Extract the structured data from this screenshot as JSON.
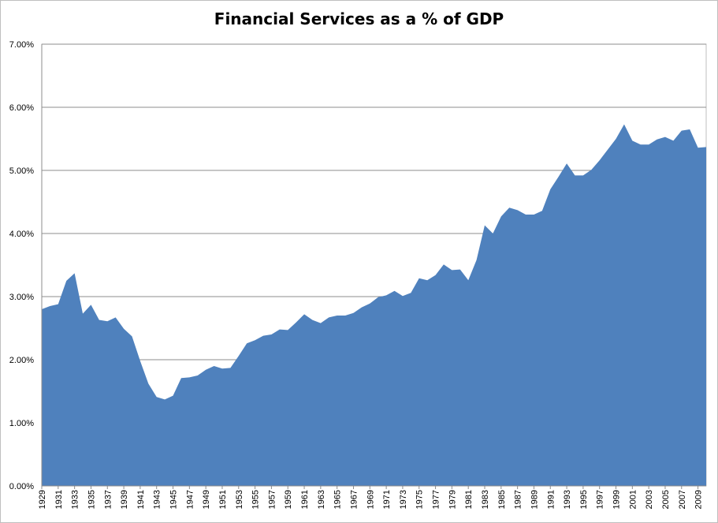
{
  "chart_data": {
    "type": "area",
    "title": "Financial Services as a % of GDP",
    "xlabel": "",
    "ylabel": "",
    "ylim": [
      0,
      7
    ],
    "yticks": [
      0,
      1,
      2,
      3,
      4,
      5,
      6,
      7
    ],
    "ytick_labels": [
      "0.00%",
      "1.00%",
      "2.00%",
      "3.00%",
      "4.00%",
      "5.00%",
      "6.00%",
      "7.00%"
    ],
    "grid": true,
    "x": [
      1929,
      1930,
      1931,
      1932,
      1933,
      1934,
      1935,
      1936,
      1937,
      1938,
      1939,
      1940,
      1941,
      1942,
      1943,
      1944,
      1945,
      1946,
      1947,
      1948,
      1949,
      1950,
      1951,
      1952,
      1953,
      1954,
      1955,
      1956,
      1957,
      1958,
      1959,
      1960,
      1961,
      1962,
      1963,
      1964,
      1965,
      1966,
      1967,
      1968,
      1969,
      1970,
      1971,
      1972,
      1973,
      1974,
      1975,
      1976,
      1977,
      1978,
      1979,
      1980,
      1981,
      1982,
      1983,
      1984,
      1985,
      1986,
      1987,
      1988,
      1989,
      1990,
      1991,
      1992,
      1993,
      1994,
      1995,
      1996,
      1997,
      1998,
      1999,
      2000,
      2001,
      2002,
      2003,
      2004,
      2005,
      2006,
      2007,
      2008,
      2009,
      2010
    ],
    "xtick_labels": [
      "1929",
      "1931",
      "1933",
      "1935",
      "1937",
      "1939",
      "1941",
      "1943",
      "1945",
      "1947",
      "1949",
      "1951",
      "1953",
      "1955",
      "1957",
      "1959",
      "1961",
      "1963",
      "1965",
      "1967",
      "1969",
      "1971",
      "1973",
      "1975",
      "1977",
      "1979",
      "1981",
      "1983",
      "1985",
      "1987",
      "1989",
      "1991",
      "1993",
      "1995",
      "1997",
      "1999",
      "2001",
      "2003",
      "2005",
      "2007",
      "2009"
    ],
    "series": [
      {
        "name": "Financial Services as a % of GDP",
        "color": "#4f81bd",
        "values": [
          2.8,
          2.85,
          2.88,
          3.25,
          3.37,
          2.73,
          2.87,
          2.63,
          2.61,
          2.67,
          2.49,
          2.37,
          1.98,
          1.62,
          1.41,
          1.37,
          1.43,
          1.71,
          1.72,
          1.75,
          1.84,
          1.9,
          1.86,
          1.87,
          2.06,
          2.26,
          2.31,
          2.38,
          2.4,
          2.48,
          2.47,
          2.59,
          2.72,
          2.63,
          2.58,
          2.67,
          2.7,
          2.7,
          2.74,
          2.83,
          2.89,
          2.99,
          3.02,
          3.09,
          3.01,
          3.06,
          3.29,
          3.26,
          3.34,
          3.51,
          3.42,
          3.43,
          3.26,
          3.58,
          4.13,
          4.0,
          4.27,
          4.41,
          4.37,
          4.3,
          4.3,
          4.36,
          4.7,
          4.9,
          5.11,
          4.92,
          4.92,
          5.01,
          5.16,
          5.33,
          5.5,
          5.73,
          5.47,
          5.41,
          5.41,
          5.49,
          5.53,
          5.47,
          5.63,
          5.65,
          5.36,
          5.37
        ]
      }
    ]
  }
}
